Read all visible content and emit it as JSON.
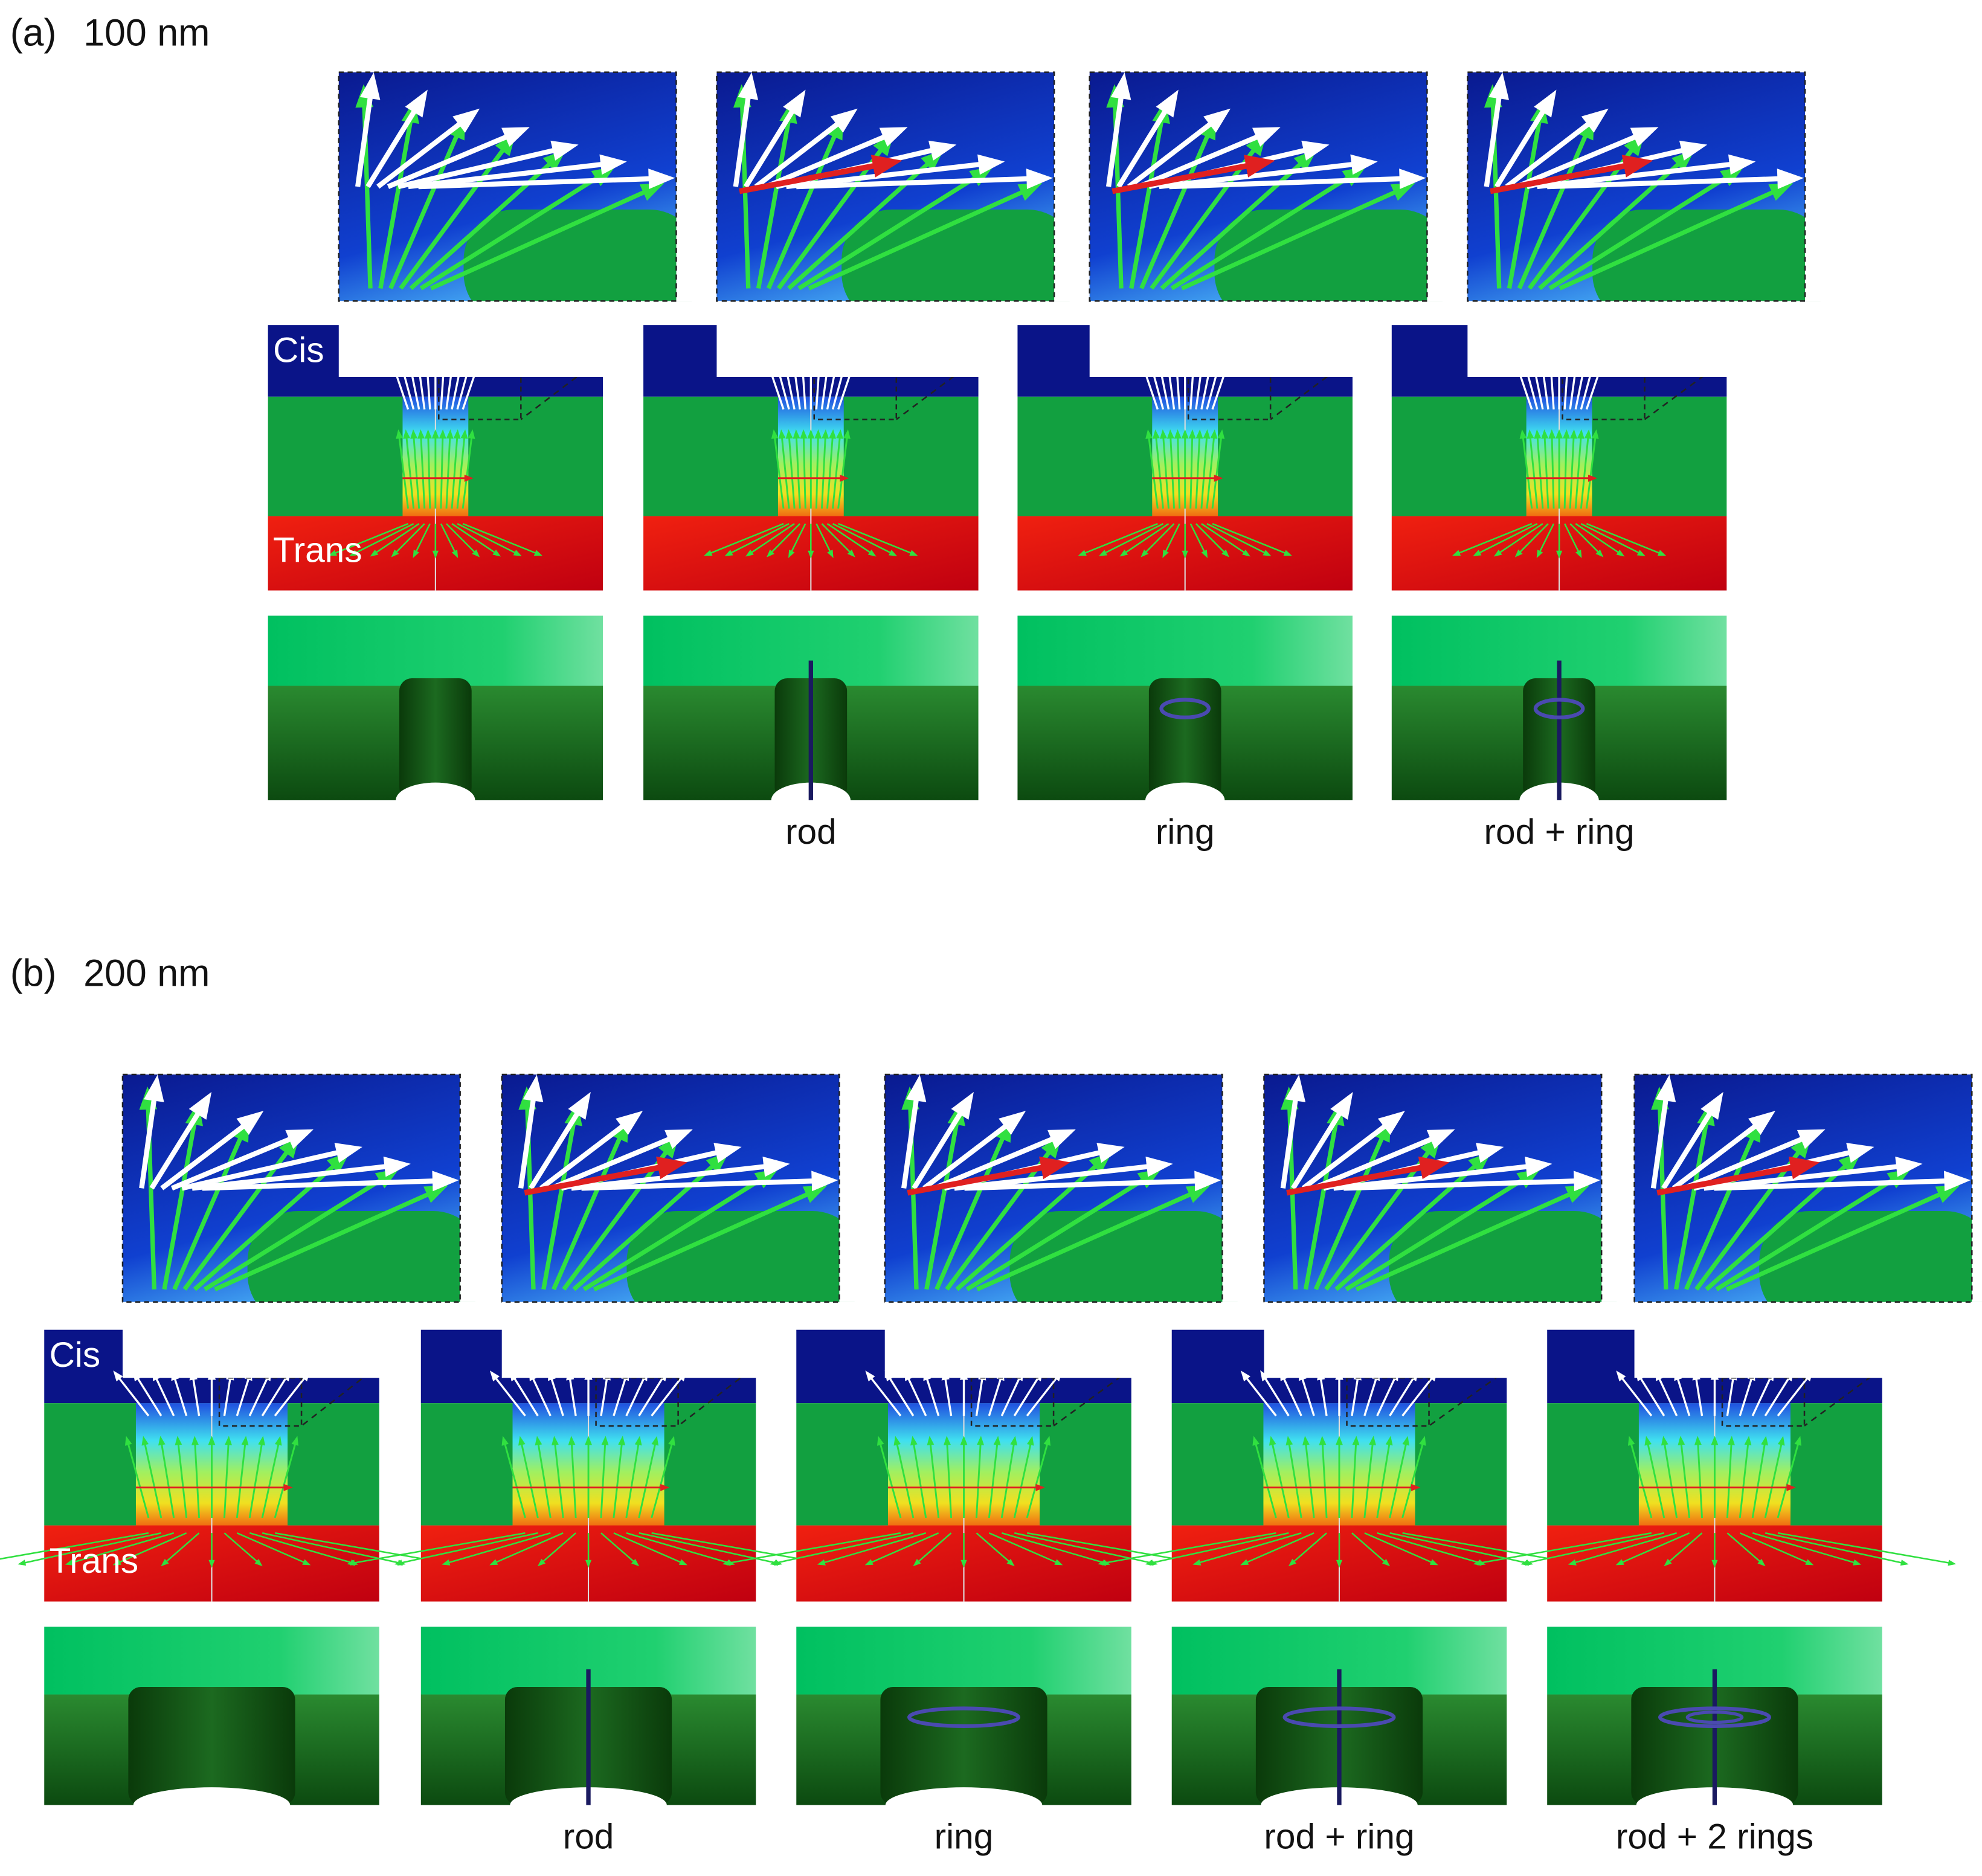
{
  "panels": [
    {
      "label": "(a)",
      "title": "100 nm",
      "cis": "Cis",
      "trans": "Trans",
      "captions": [
        "rod",
        "ring",
        "rod + ring"
      ]
    },
    {
      "label": "(b)",
      "title": "200 nm",
      "cis": "Cis",
      "trans": "Trans",
      "captions": [
        "rod",
        "ring",
        "rod + ring",
        "rod + 2 rings"
      ]
    }
  ]
}
